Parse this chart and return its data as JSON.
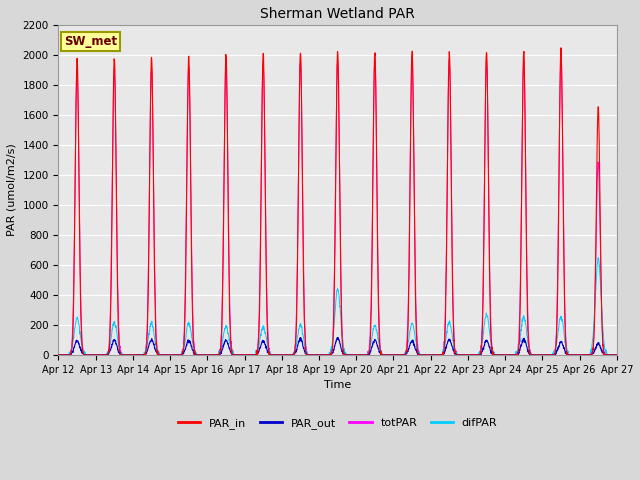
{
  "title": "Sherman Wetland PAR",
  "ylabel": "PAR (umol/m2/s)",
  "xlabel": "Time",
  "station_label": "SW_met",
  "ylim": [
    0,
    2200
  ],
  "num_days": 15,
  "colors": {
    "PAR_in": "#ff0000",
    "PAR_out": "#0000cc",
    "totPAR": "#ff00ff",
    "difPAR": "#00ccff"
  },
  "background_color": "#d8d8d8",
  "plot_bg_color": "#e8e8e8",
  "grid_color": "#ffffff",
  "yticks": [
    0,
    200,
    400,
    600,
    800,
    1000,
    1200,
    1400,
    1600,
    1800,
    2000,
    2200
  ],
  "x_day_labels": [
    "Apr 12",
    "Apr 13",
    "Apr 14",
    "Apr 15",
    "Apr 16",
    "Apr 17",
    "Apr 18",
    "Apr 19",
    "Apr 20",
    "Apr 21",
    "Apr 22",
    "Apr 23",
    "Apr 24",
    "Apr 25",
    "Apr 26",
    "Apr 27"
  ],
  "peak_PAR_in": [
    1970,
    1975,
    1980,
    1990,
    2005,
    2010,
    2025,
    2025,
    2030,
    2025,
    2025,
    2025,
    2020,
    2050,
    1650
  ],
  "peak_totPAR": [
    1900,
    1900,
    1910,
    1920,
    1940,
    1950,
    1970,
    1960,
    1980,
    1970,
    1960,
    1960,
    1950,
    1990,
    1290
  ],
  "peak_difPAR": [
    245,
    215,
    210,
    210,
    190,
    190,
    200,
    440,
    200,
    210,
    220,
    270,
    255,
    250,
    640
  ],
  "peak_PAR_out": [
    95,
    100,
    100,
    95,
    95,
    95,
    105,
    110,
    100,
    95,
    100,
    95,
    105,
    85,
    75
  ]
}
